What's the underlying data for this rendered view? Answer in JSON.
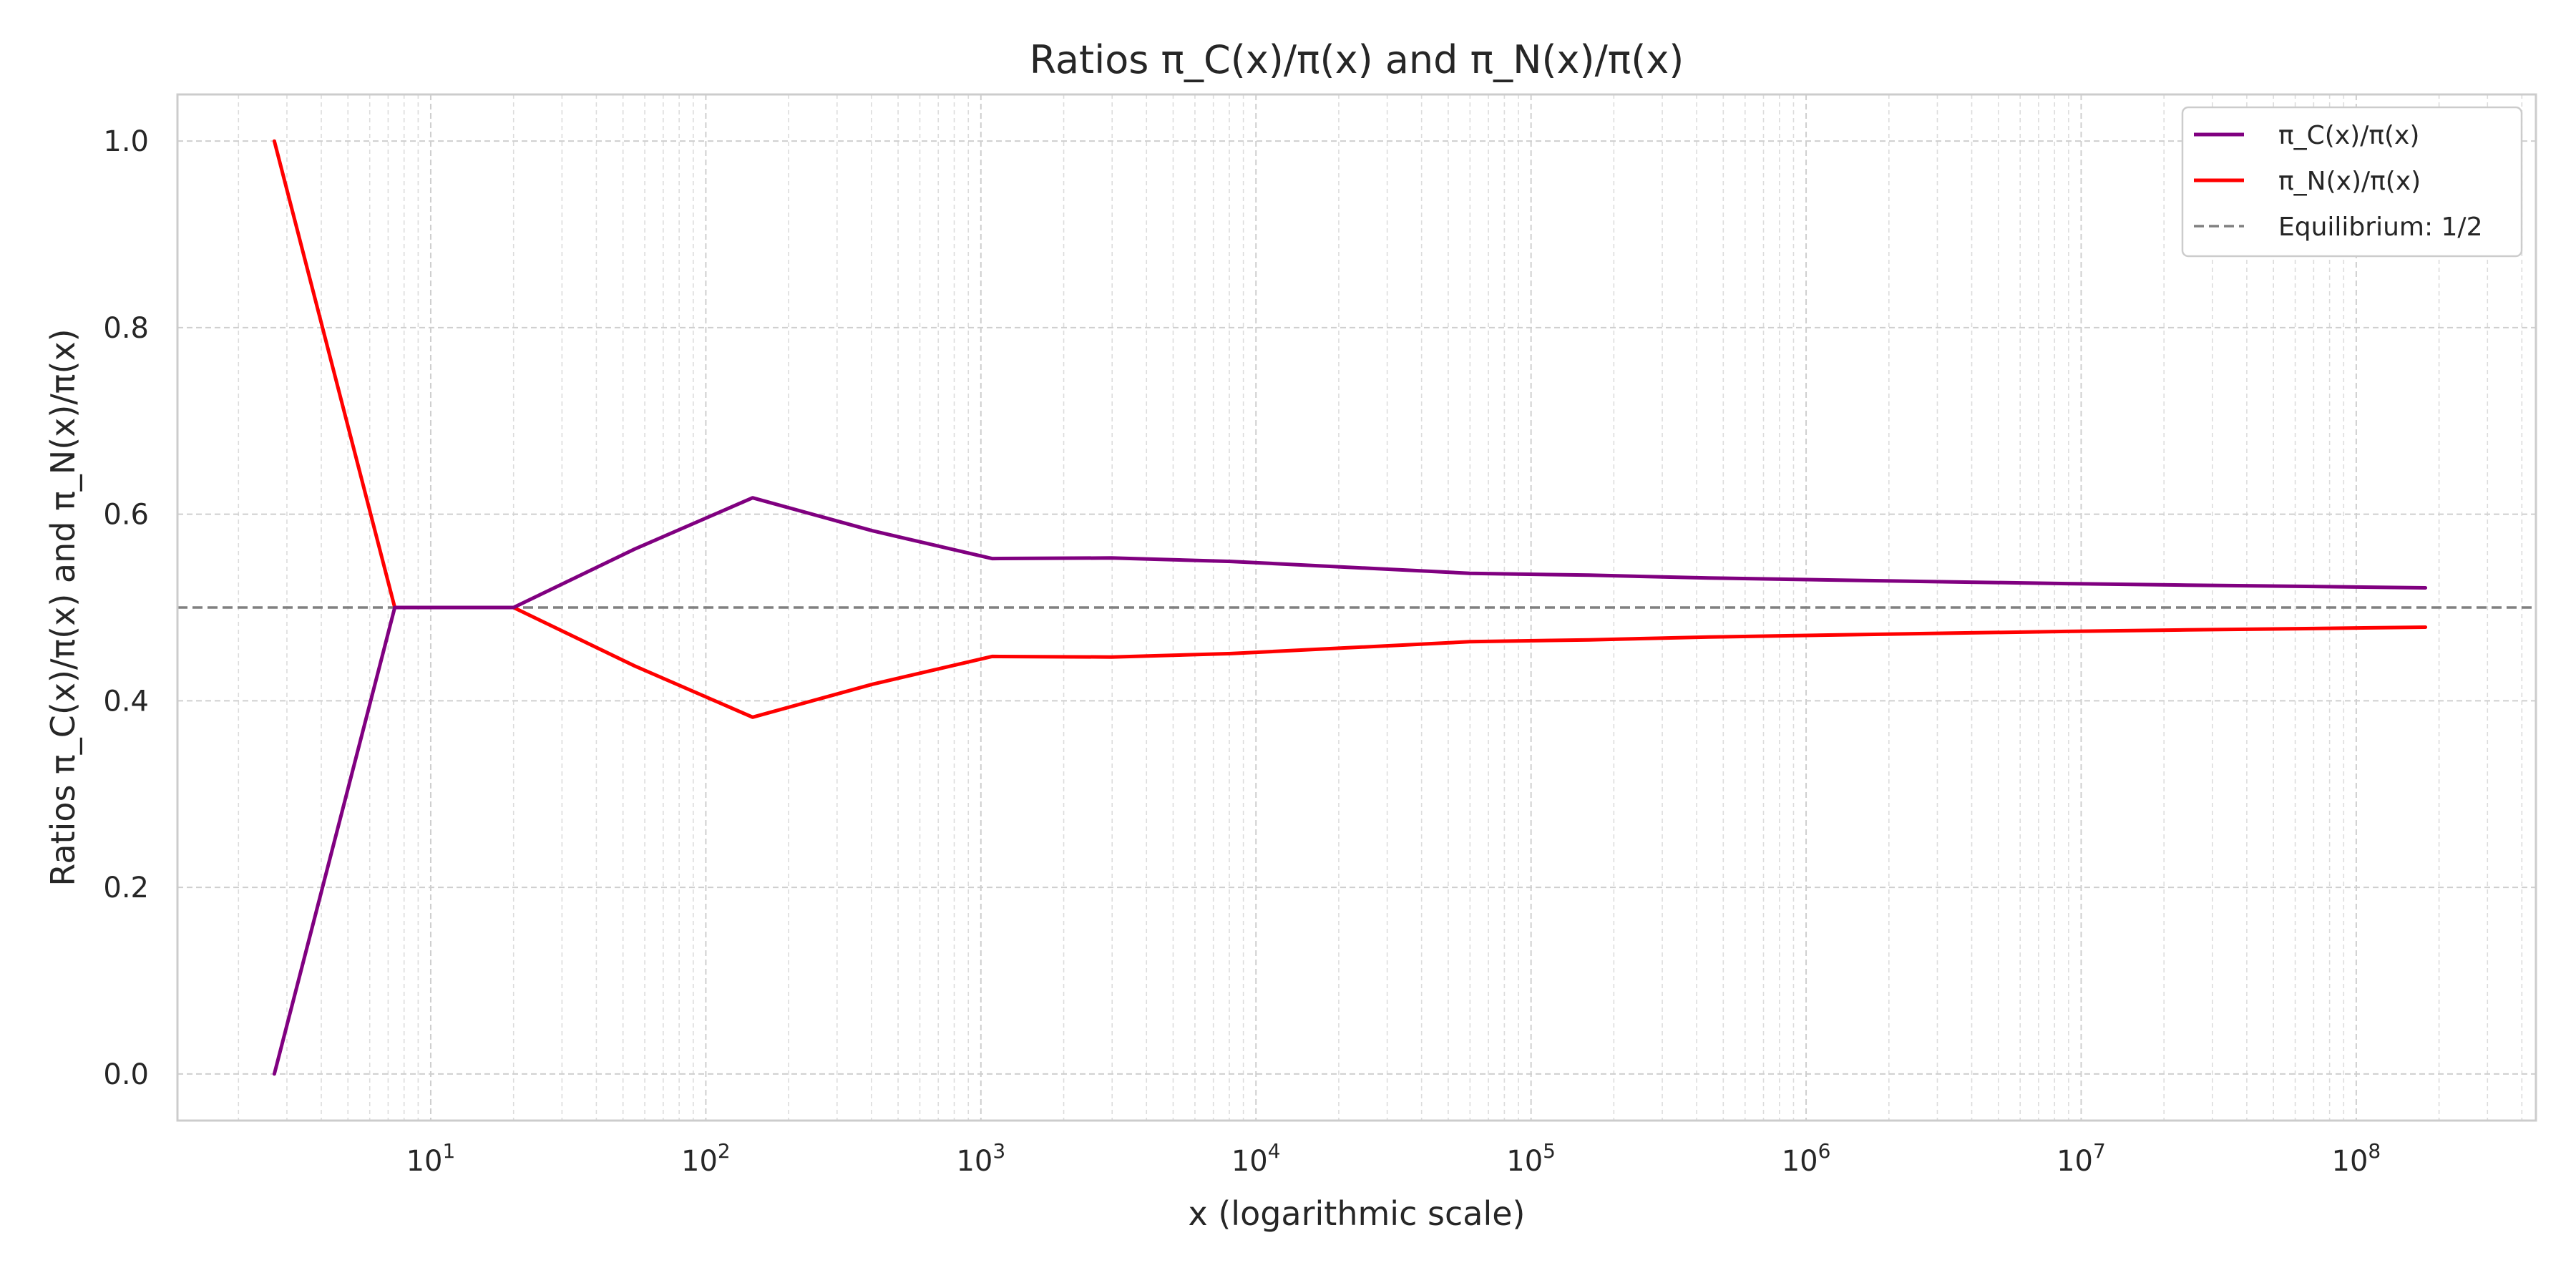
{
  "chart_data": {
    "type": "line",
    "title": "Ratios π_C(x)/π(x) and π_N(x)/π(x)",
    "xlabel": "x (logarithmic scale)",
    "ylabel": "Ratios π_C(x)/π(x) and π_N(x)/π(x)",
    "xscale": "log",
    "xlim": [
      1.2,
      450000000
    ],
    "ylim": [
      -0.05,
      1.05
    ],
    "x_ticks": [
      {
        "base": "10",
        "exp": "1",
        "value": 10
      },
      {
        "base": "10",
        "exp": "2",
        "value": 100
      },
      {
        "base": "10",
        "exp": "3",
        "value": 1000
      },
      {
        "base": "10",
        "exp": "4",
        "value": 10000
      },
      {
        "base": "10",
        "exp": "5",
        "value": 100000
      },
      {
        "base": "10",
        "exp": "6",
        "value": 1000000
      },
      {
        "base": "10",
        "exp": "7",
        "value": 10000000
      },
      {
        "base": "10",
        "exp": "8",
        "value": 100000000
      }
    ],
    "y_ticks": [
      {
        "label": "0.0",
        "value": 0.0
      },
      {
        "label": "0.2",
        "value": 0.2
      },
      {
        "label": "0.4",
        "value": 0.4
      },
      {
        "label": "0.6",
        "value": 0.6
      },
      {
        "label": "0.8",
        "value": 0.8
      },
      {
        "label": "1.0",
        "value": 1.0
      }
    ],
    "grid": true,
    "legend_position": "top-right",
    "x": [
      2.7,
      7.4,
      20,
      55,
      148,
      403,
      1097,
      2981,
      8103,
      59874,
      162755,
      442413,
      1202604,
      3269017,
      8886111,
      24154953,
      65659969,
      178482301
    ],
    "series": [
      {
        "name": "π_C(x)/π(x)",
        "color": "#800080",
        "values": [
          0.0,
          0.5,
          0.5,
          0.5625,
          0.6176,
          0.5823,
          0.5525,
          0.5531,
          0.5494,
          0.5367,
          0.5347,
          0.5317,
          0.5295,
          0.5275,
          0.5256,
          0.524,
          0.5226,
          0.5211
        ]
      },
      {
        "name": "π_N(x)/π(x)",
        "color": "#ff0000",
        "values": [
          1.0,
          0.5,
          0.5,
          0.4375,
          0.3824,
          0.4177,
          0.4475,
          0.4469,
          0.4506,
          0.4633,
          0.4653,
          0.4683,
          0.4705,
          0.4725,
          0.4744,
          0.476,
          0.4774,
          0.4789
        ]
      }
    ],
    "reference_line": {
      "name": "Equilibrium: 1/2",
      "y": 0.5,
      "color": "#808080"
    }
  }
}
